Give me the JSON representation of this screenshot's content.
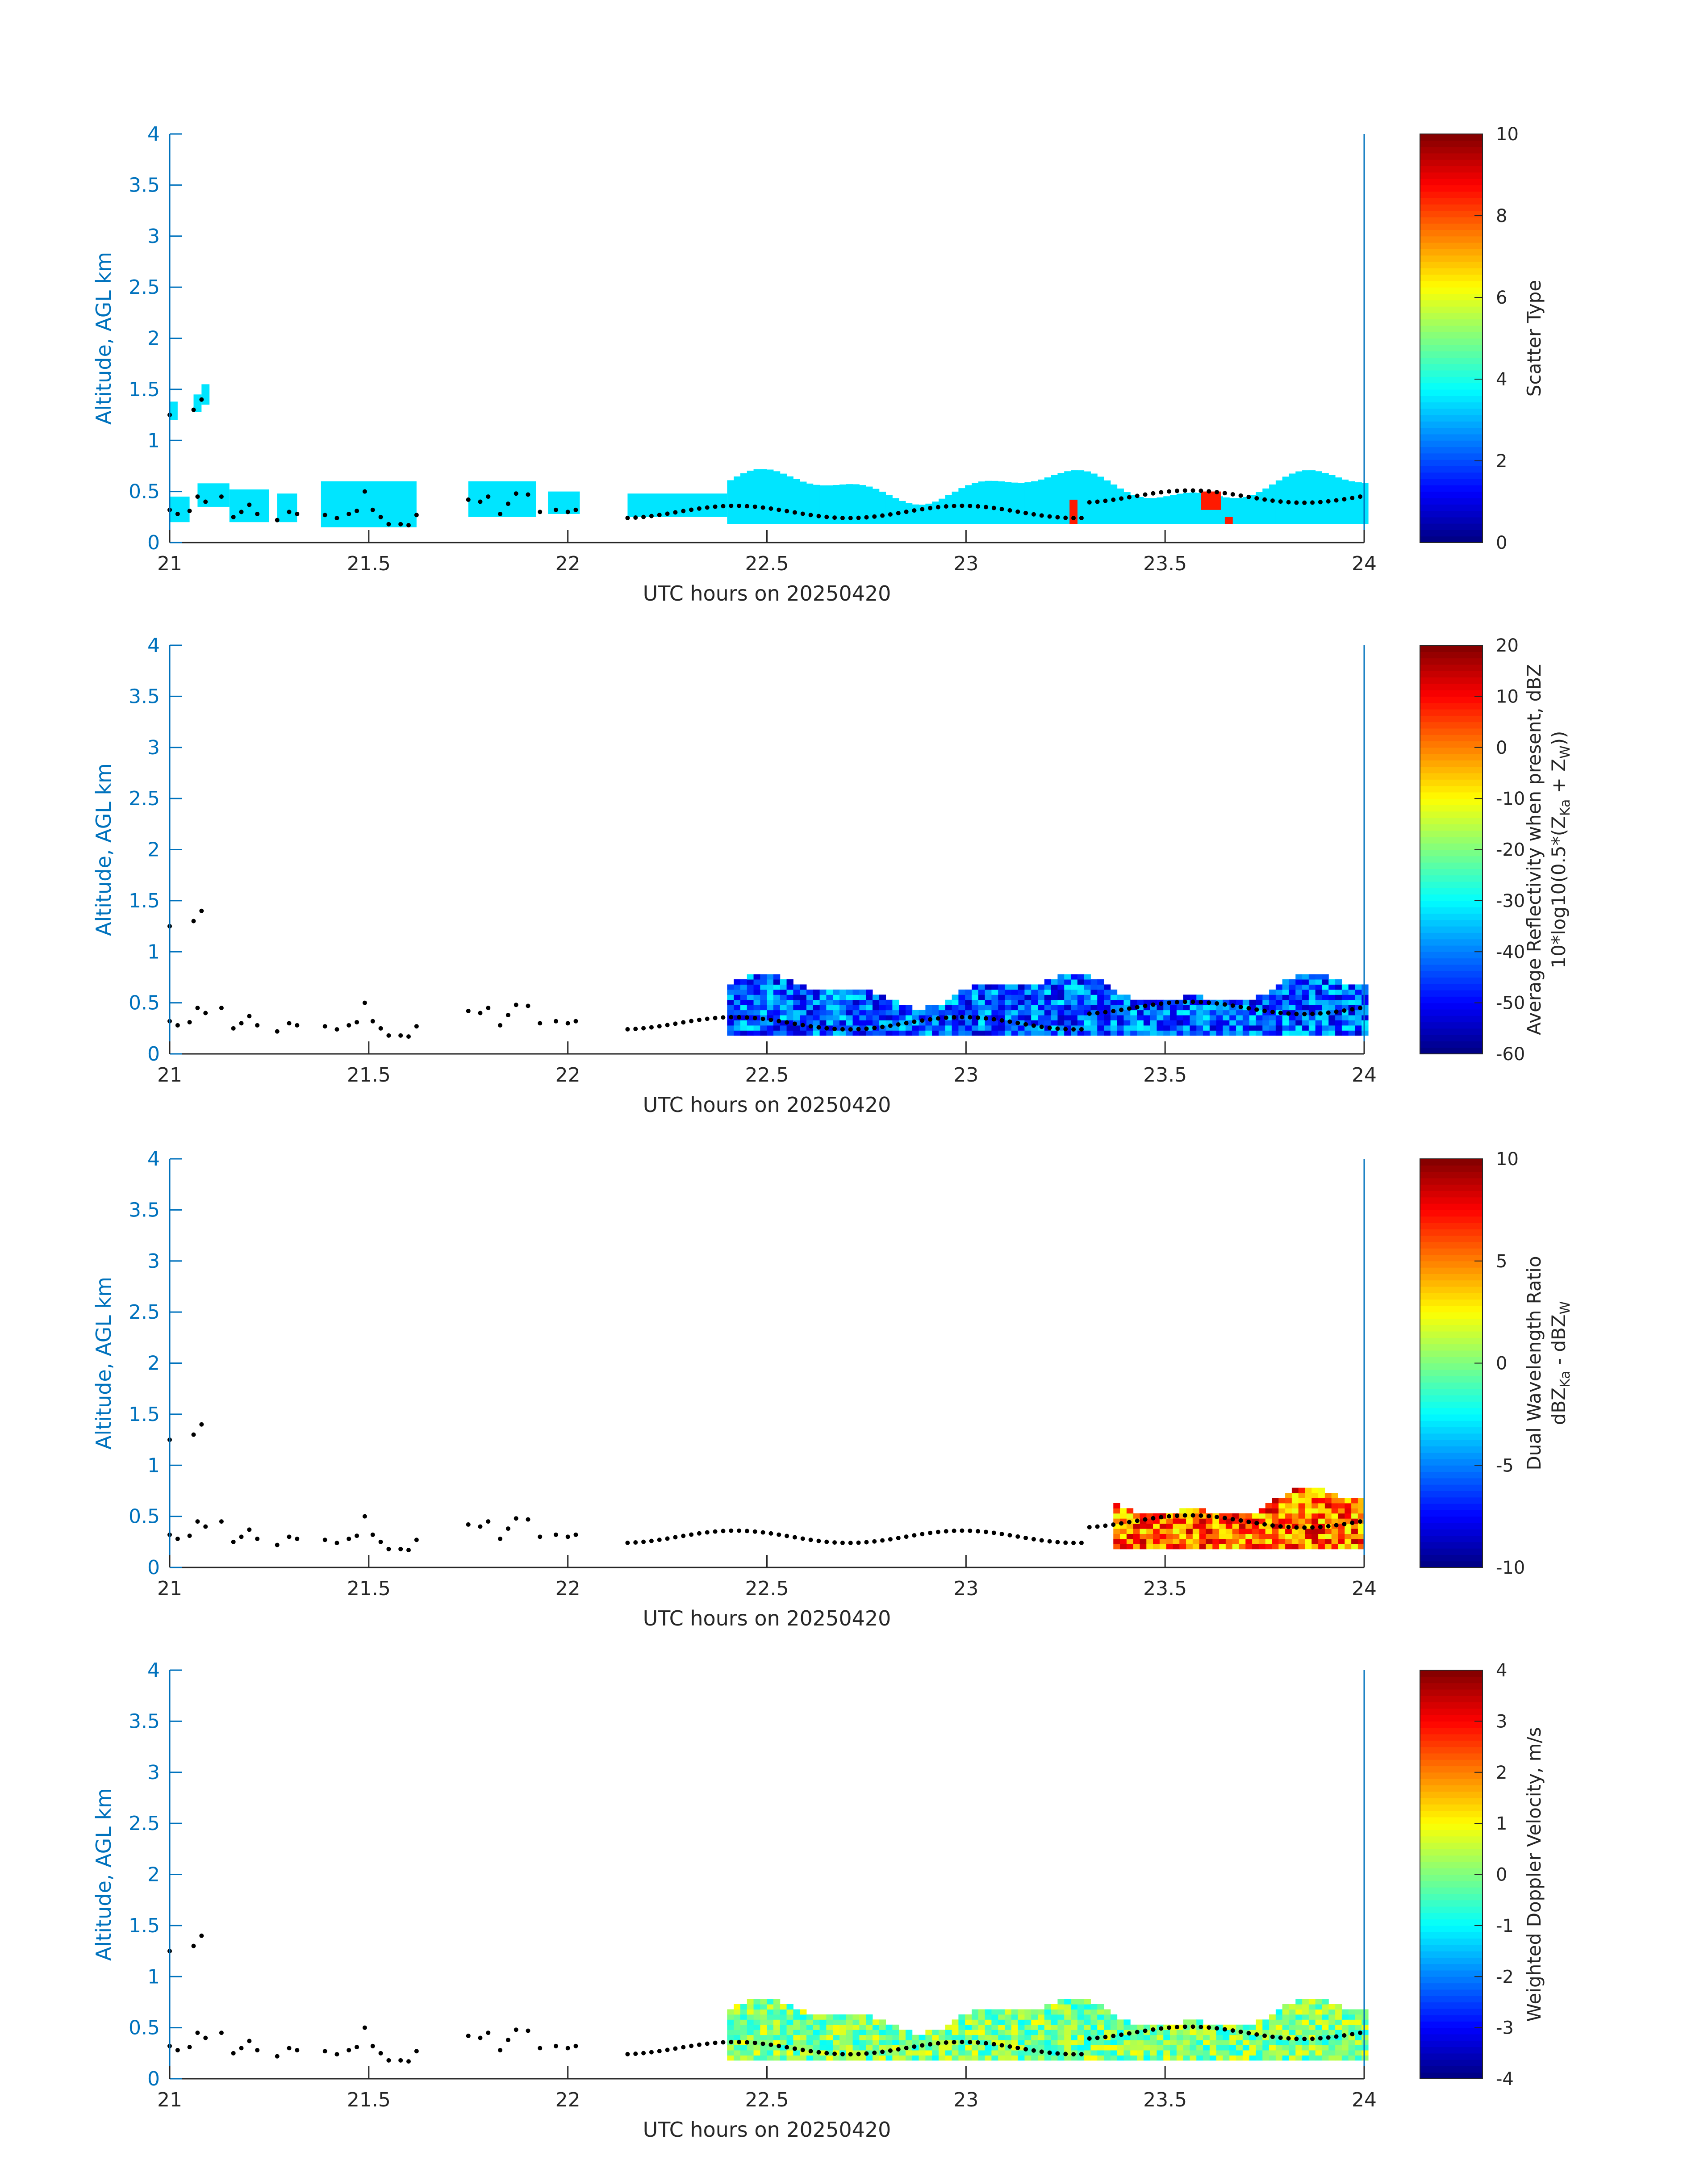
{
  "figure": {
    "time_axis_label": "UTC hours on 20250420",
    "altitude_axis_label": "Altitude, AGL km"
  },
  "chart_data": [
    {
      "type": "heatmap",
      "panel": 1,
      "xlabel": "UTC hours on 20250420",
      "ylabel": "Altitude, AGL km",
      "xlim": [
        21,
        24
      ],
      "ylim": [
        0,
        4
      ],
      "x_ticks": [
        "21",
        "21.5",
        "22",
        "22.5",
        "23",
        "23.5",
        "24"
      ],
      "y_ticks": [
        "0",
        "0.5",
        "1",
        "1.5",
        "2",
        "2.5",
        "3",
        "3.5",
        "4"
      ],
      "colorbar": {
        "label": "Scatter Type",
        "colormap": "jet",
        "range": [
          0,
          10
        ],
        "ticks": [
          "0",
          "2",
          "4",
          "6",
          "8",
          "10"
        ]
      },
      "fill_description": "Scatter type mostly ~3.5 (cyan) below ~0.7 km; type ~8.5 (red) near 23.27 h and 23.6 h",
      "cyan_value": 3.5,
      "red_value": 8.5,
      "red_patches": [
        {
          "x0": 23.26,
          "x1": 23.28,
          "y0": 0.18,
          "y1": 0.42
        },
        {
          "x0": 23.59,
          "x1": 23.64,
          "y0": 0.32,
          "y1": 0.5
        },
        {
          "x0": 23.65,
          "x1": 23.67,
          "y0": 0.18,
          "y1": 0.25
        }
      ],
      "altitude_x": [
        21.0,
        21.02,
        21.05,
        21.07,
        21.09,
        21.13,
        21.16,
        21.18,
        21.2,
        21.22,
        21.27,
        21.3,
        21.32,
        21.39,
        21.42,
        21.45,
        21.47,
        21.49,
        21.51,
        21.53,
        21.55,
        21.58,
        21.6,
        21.62,
        21.75,
        21.78,
        21.8,
        21.83,
        21.85,
        21.87,
        21.9,
        21.93,
        21.97,
        22.0,
        22.02
      ],
      "altitude_y": [
        0.32,
        0.28,
        0.31,
        0.45,
        0.4,
        0.45,
        0.25,
        0.3,
        0.37,
        0.28,
        0.22,
        0.3,
        0.28,
        0.27,
        0.24,
        0.28,
        0.31,
        0.5,
        0.32,
        0.25,
        0.18,
        0.18,
        0.17,
        0.27,
        0.42,
        0.4,
        0.45,
        0.28,
        0.38,
        0.48,
        0.47,
        0.3,
        0.32,
        0.3,
        0.32
      ],
      "altitude_segments": [
        {
          "x": [
            21.0,
            21.06,
            21.08
          ],
          "y": [
            1.25,
            1.3,
            1.4
          ]
        }
      ]
    },
    {
      "type": "heatmap",
      "panel": 2,
      "xlabel": "UTC hours on 20250420",
      "ylabel": "Altitude, AGL km",
      "xlim": [
        21,
        24
      ],
      "ylim": [
        0,
        4
      ],
      "x_ticks": [
        "21",
        "21.5",
        "22",
        "22.5",
        "23",
        "23.5",
        "24"
      ],
      "y_ticks": [
        "0",
        "0.5",
        "1",
        "1.5",
        "2",
        "2.5",
        "3",
        "3.5",
        "4"
      ],
      "colorbar": {
        "label_line1": "Average Reflectivity when present, dBZ",
        "label_line2": "10*log10(0.5*(Z",
        "label_sub1": "Ka",
        "label_mid": " + Z",
        "label_sub2": "W",
        "label_end": "))",
        "colormap": "jet",
        "range": [
          -60,
          20
        ],
        "ticks": [
          "-60",
          "-50",
          "-40",
          "-30",
          "-20",
          "-10",
          "0",
          "10",
          "20"
        ]
      },
      "fill_description": "Reflectivity between about -55 and -30 dBZ from 22.4 to 24 h below ~0.75 km",
      "value_range_shown": [
        -55,
        -30
      ],
      "x_start": 22.4
    },
    {
      "type": "heatmap",
      "panel": 3,
      "xlabel": "UTC hours on 20250420",
      "ylabel": "Altitude, AGL km",
      "xlim": [
        21,
        24
      ],
      "ylim": [
        0,
        4
      ],
      "x_ticks": [
        "21",
        "21.5",
        "22",
        "22.5",
        "23",
        "23.5",
        "24"
      ],
      "y_ticks": [
        "0",
        "0.5",
        "1",
        "1.5",
        "2",
        "2.5",
        "3",
        "3.5",
        "4"
      ],
      "colorbar": {
        "label_line1": "Dual Wavelength Ratio",
        "label_line2": "dBZ",
        "label_sub1": "Ka",
        "label_mid": " - dBZ",
        "label_sub2": "W",
        "colormap": "jet",
        "range": [
          -10,
          10
        ],
        "ticks": [
          "-10",
          "-5",
          "0",
          "5",
          "10"
        ]
      },
      "fill_description": "DWR about 2 to 9 dB from 23.37 to 24 h below ~0.75 km",
      "value_range_shown": [
        2,
        9
      ],
      "x_start": 23.37
    },
    {
      "type": "heatmap",
      "panel": 4,
      "xlabel": "UTC hours on 20250420",
      "ylabel": "Altitude, AGL km",
      "xlim": [
        21,
        24
      ],
      "ylim": [
        0,
        4
      ],
      "x_ticks": [
        "21",
        "21.5",
        "22",
        "22.5",
        "23",
        "23.5",
        "24"
      ],
      "y_ticks": [
        "0",
        "0.5",
        "1",
        "1.5",
        "2",
        "2.5",
        "3",
        "3.5",
        "4"
      ],
      "colorbar": {
        "label_line1": "Weighted Doppler Velocity, m/s",
        "colormap": "jet",
        "range": [
          -4,
          4
        ],
        "ticks": [
          "-4",
          "-3",
          "-2",
          "-1",
          "0",
          "1",
          "2",
          "3",
          "4"
        ]
      },
      "fill_description": "Velocity mostly around 0 to 0.7 m/s from 22.4 to 24 h below ~0.75 km",
      "value_range_shown": [
        -1,
        1
      ],
      "x_start": 22.4
    }
  ]
}
